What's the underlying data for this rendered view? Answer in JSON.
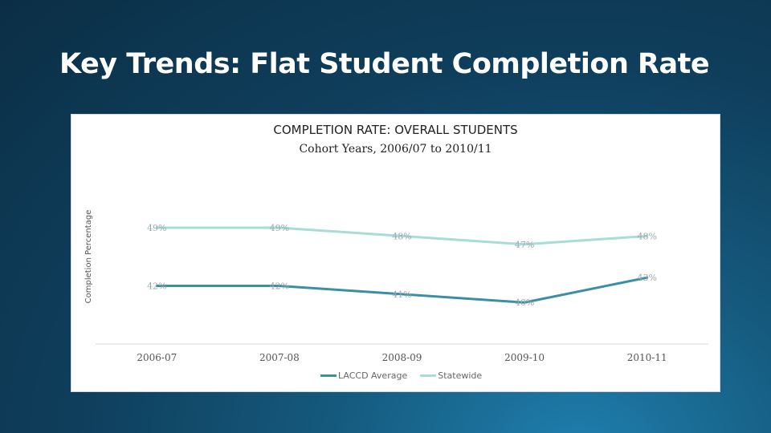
{
  "slide": {
    "title": "Key Trends: Flat Student Completion Rate"
  },
  "chart_data": {
    "type": "line",
    "title": "COMPLETION RATE: OVERALL STUDENTS",
    "subtitle": "Cohort Years, 2006/07 to 2010/11",
    "xlabel": "",
    "ylabel": "Completion Percentage",
    "categories": [
      "2006-07",
      "2007-08",
      "2008-09",
      "2009-10",
      "2010-11"
    ],
    "ylim": [
      35,
      52
    ],
    "grid": false,
    "legend_position": "bottom",
    "series": [
      {
        "name": "LACCD Average",
        "values": [
          42,
          42,
          41,
          40,
          43
        ],
        "labels": [
          "42%",
          "42%",
          "41%",
          "40%",
          "43%"
        ],
        "color": "#3a8fa6"
      },
      {
        "name": "Statewide",
        "values": [
          49,
          49,
          48,
          47,
          48
        ],
        "labels": [
          "49%",
          "49%",
          "48%",
          "47%",
          "48%"
        ],
        "color": "#a8dcd6"
      }
    ]
  }
}
